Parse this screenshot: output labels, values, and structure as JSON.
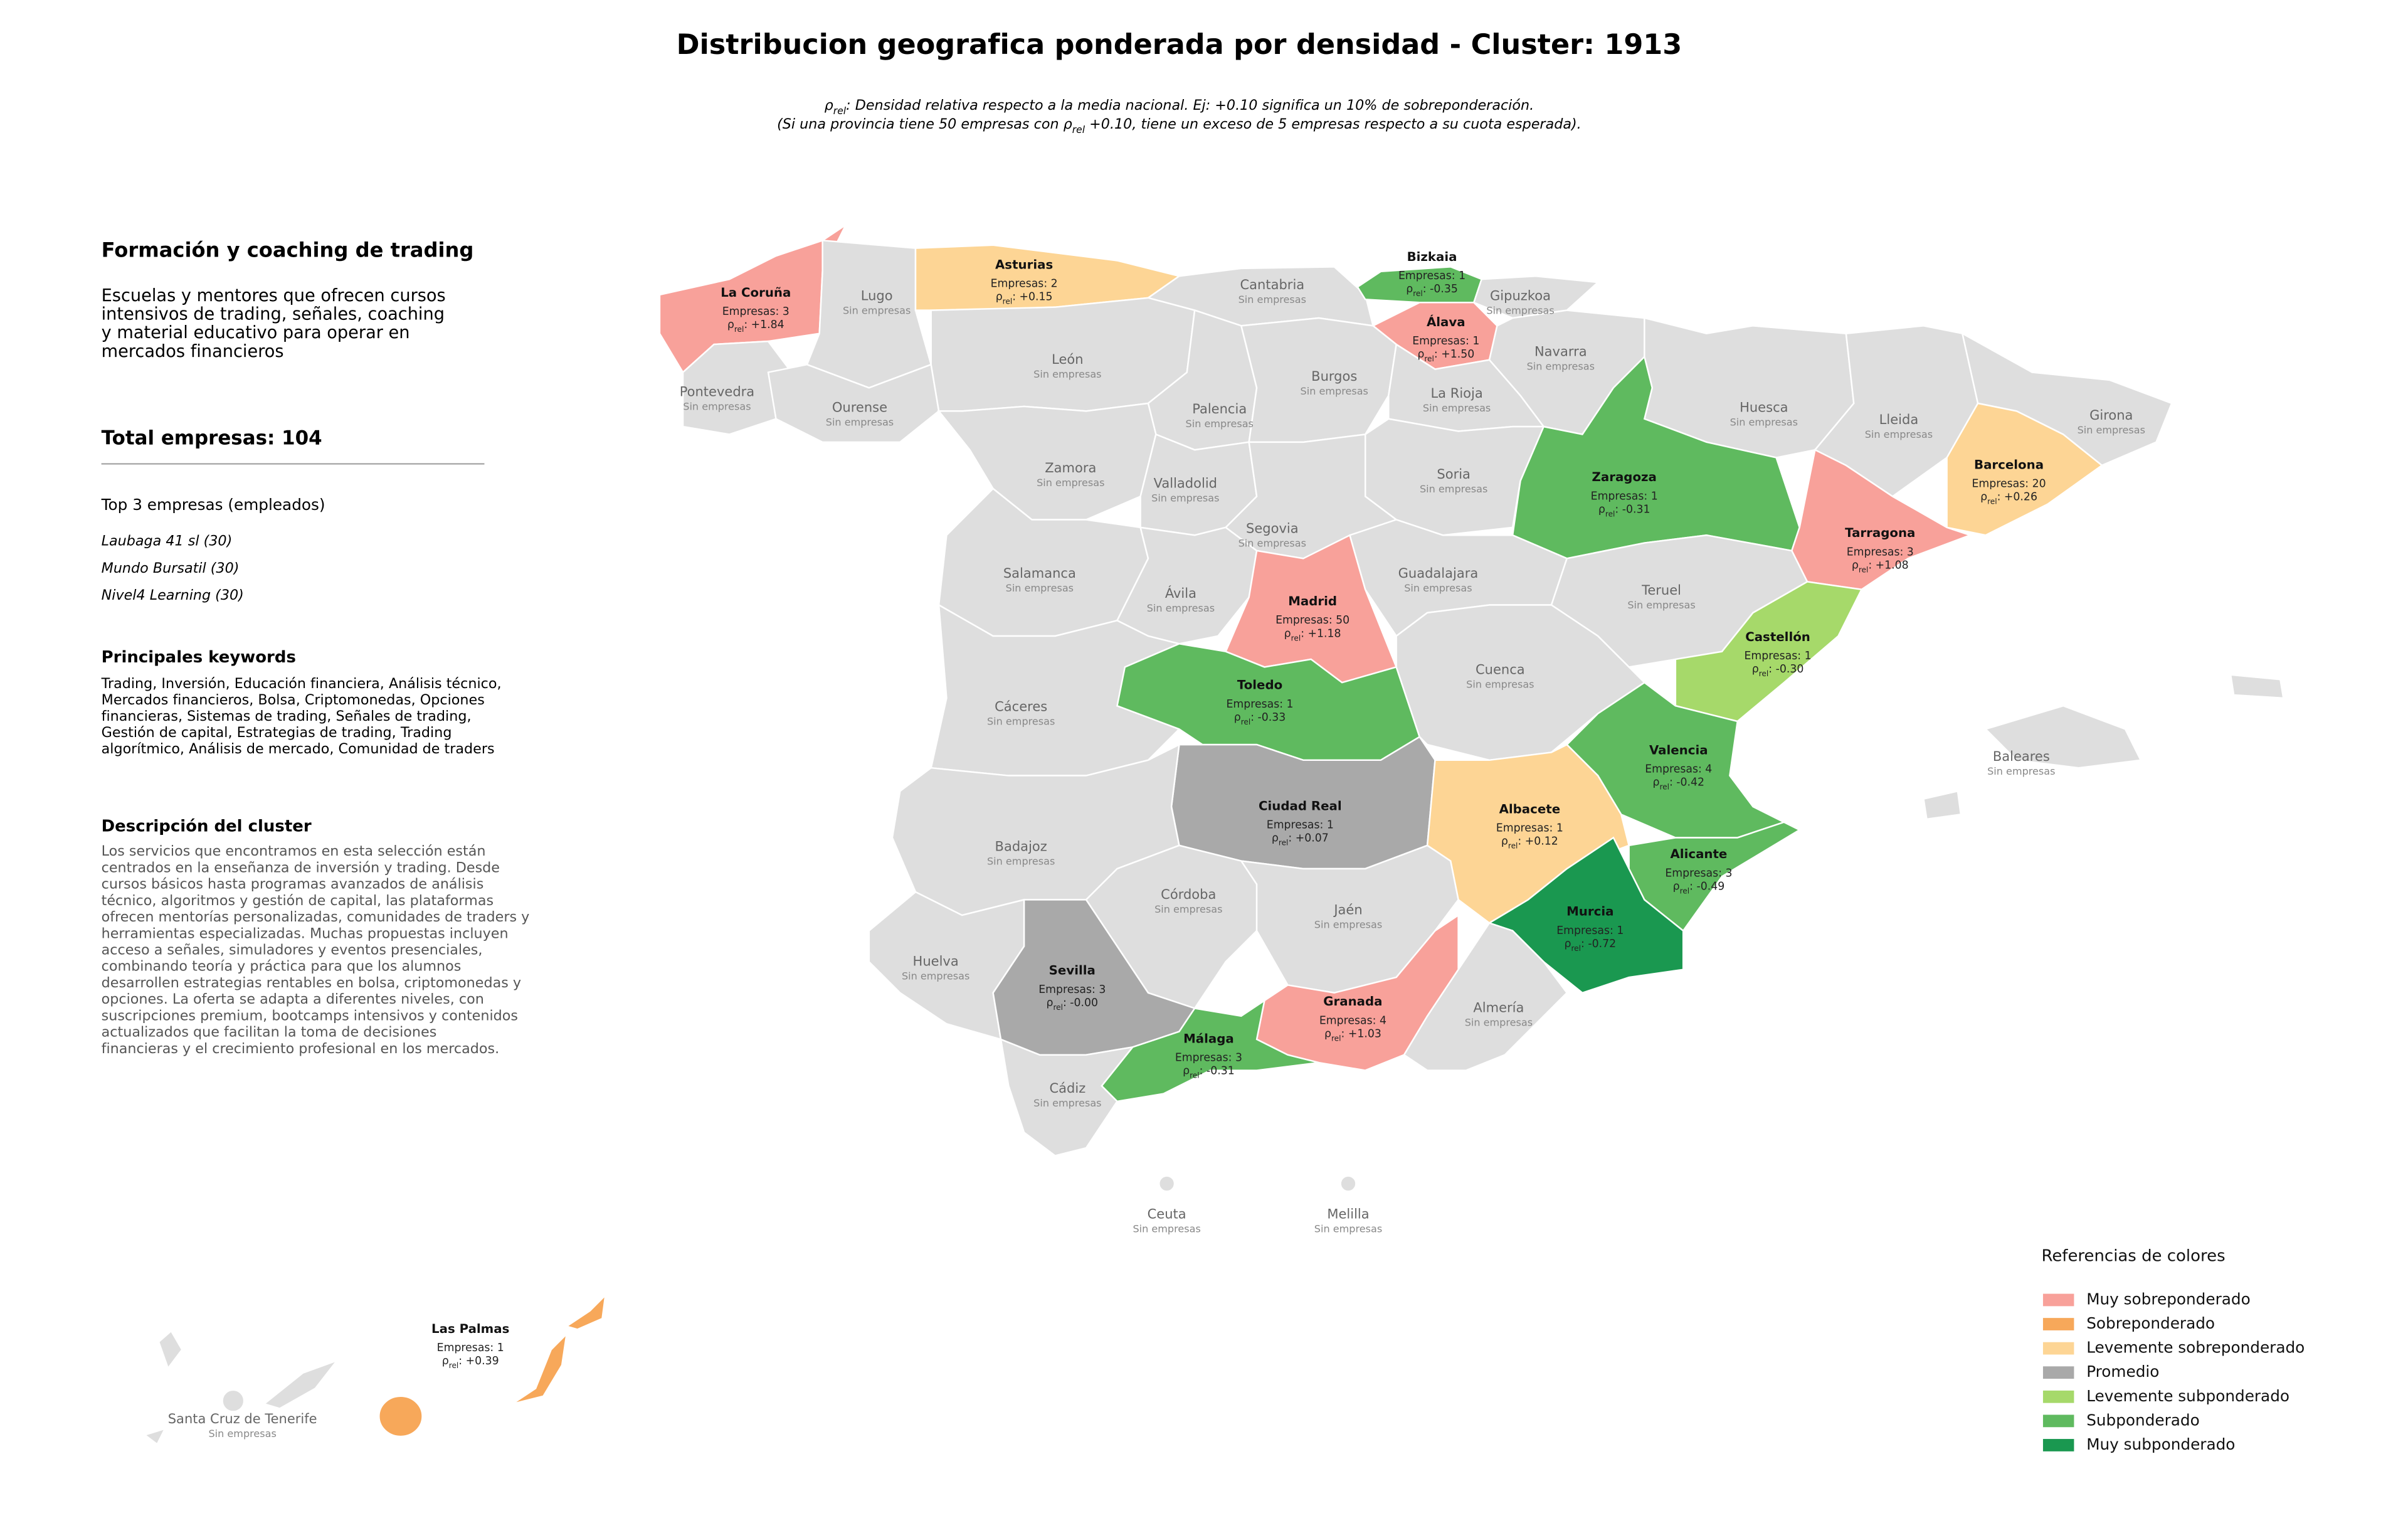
{
  "title": "Distribucion geografica ponderada por densidad - Cluster: 1913",
  "subtitle": [
    [
      "ρ",
      "rel",
      ": Densidad relativa respecto a la media nacional. Ej: +0.10 significa un 10% de sobreponderación."
    ],
    [
      "(Si una provincia tiene 50 empresas con ρ",
      "rel",
      " +0.10, tiene un exceso de 5 empresas respecto a su cuota esperada)."
    ]
  ],
  "panel": {
    "title": "Formación y coaching de trading",
    "description": [
      "Escuelas y mentores que ofrecen cursos",
      "intensivos de trading, señales, coaching",
      "y material educativo para operar en",
      "mercados financieros"
    ],
    "total": "Total empresas: 104",
    "top_heading": "Top 3 empresas (empleados)",
    "top": [
      "Laubaga 41 sl (30)",
      "Mundo Bursatil (30)",
      "Nivel4 Learning (30)"
    ],
    "keywords_heading": "Principales keywords",
    "keywords": [
      "Trading, Inversión, Educación financiera, Análisis técnico,",
      "Mercados financieros, Bolsa, Criptomonedas, Opciones",
      "financieras, Sistemas de trading, Señales de trading,",
      "Gestión de capital, Estrategias de trading, Trading",
      "algorítmico, Análisis de mercado, Comunidad de traders"
    ],
    "cluster_heading": "Descripción del cluster",
    "cluster": [
      "Los servicios que encontramos en esta selección están",
      "centrados en la enseñanza de inversión y trading. Desde",
      "cursos básicos hasta programas avanzados de análisis",
      "técnico, algoritmos y gestión de capital, las plataformas",
      "ofrecen mentorías personalizadas, comunidades de traders y",
      "herramientas especializadas. Muchas propuestas incluyen",
      "acceso a señales, simuladores y eventos presenciales,",
      "combinando teoría y práctica para que los alumnos",
      "desarrollen estrategias rentables en bolsa, criptomonedas y",
      "opciones. La oferta se adapta a diferentes niveles, con",
      "suscripciones premium, bootcamps intensivos y contenidos",
      "actualizados que facilitan la toma de decisiones",
      "financieras y el crecimiento profesional en los mercados."
    ]
  },
  "provinces": [
    {
      "name": "La Coruña",
      "color": "#f8a19a",
      "count": "Empresas: 3",
      "rho": [
        "ρ",
        "rel",
        ": +1.84"
      ]
    },
    {
      "name": "Lugo",
      "color": "#dedede",
      "note": "Sin empresas"
    },
    {
      "name": "Asturias",
      "color": "#fdd595",
      "count": "Empresas: 2",
      "rho": [
        "ρ",
        "rel",
        ": +0.15"
      ]
    },
    {
      "name": "Cantabria",
      "color": "#dedede",
      "note": "Sin empresas"
    },
    {
      "name": "Bizkaia",
      "color": "#5fba5f",
      "count": "Empresas: 1",
      "rho": [
        "ρ",
        "rel",
        ": -0.35"
      ]
    },
    {
      "name": "Gipuzkoa",
      "color": "#dedede",
      "note": "Sin empresas"
    },
    {
      "name": "Álava",
      "color": "#f8a19a",
      "count": "Empresas: 1",
      "rho": [
        "ρ",
        "rel",
        ": +1.50"
      ]
    },
    {
      "name": "Navarra",
      "color": "#dedede",
      "note": "Sin empresas"
    },
    {
      "name": "Pontevedra",
      "color": "#dedede",
      "note": "Sin empresas"
    },
    {
      "name": "Ourense",
      "color": "#dedede",
      "note": "Sin empresas"
    },
    {
      "name": "León",
      "color": "#dedede",
      "note": "Sin empresas"
    },
    {
      "name": "Palencia",
      "color": "#dedede",
      "note": "Sin empresas"
    },
    {
      "name": "Burgos",
      "color": "#dedede",
      "note": "Sin empresas"
    },
    {
      "name": "La Rioja",
      "color": "#dedede",
      "note": "Sin empresas"
    },
    {
      "name": "Huesca",
      "color": "#dedede",
      "note": "Sin empresas"
    },
    {
      "name": "Lleida",
      "color": "#dedede",
      "note": "Sin empresas"
    },
    {
      "name": "Girona",
      "color": "#dedede",
      "note": "Sin empresas"
    },
    {
      "name": "Zaragoza",
      "color": "#5fba5f",
      "count": "Empresas: 1",
      "rho": [
        "ρ",
        "rel",
        ": -0.31"
      ]
    },
    {
      "name": "Barcelona",
      "color": "#fdd595",
      "count": "Empresas: 20",
      "rho": [
        "ρ",
        "rel",
        ": +0.26"
      ]
    },
    {
      "name": "Zamora",
      "color": "#dedede",
      "note": "Sin empresas"
    },
    {
      "name": "Valladolid",
      "color": "#dedede",
      "note": "Sin empresas"
    },
    {
      "name": "Soria",
      "color": "#dedede",
      "note": "Sin empresas"
    },
    {
      "name": "Segovia",
      "color": "#dedede",
      "note": "Sin empresas"
    },
    {
      "name": "Tarragona",
      "color": "#f8a19a",
      "count": "Empresas: 3",
      "rho": [
        "ρ",
        "rel",
        ": +1.08"
      ]
    },
    {
      "name": "Salamanca",
      "color": "#dedede",
      "note": "Sin empresas"
    },
    {
      "name": "Ávila",
      "color": "#dedede",
      "note": "Sin empresas"
    },
    {
      "name": "Madrid",
      "color": "#f8a19a",
      "count": "Empresas: 50",
      "rho": [
        "ρ",
        "rel",
        ": +1.18"
      ]
    },
    {
      "name": "Guadalajara",
      "color": "#dedede",
      "note": "Sin empresas"
    },
    {
      "name": "Teruel",
      "color": "#dedede",
      "note": "Sin empresas"
    },
    {
      "name": "Castellón",
      "color": "#a6d96a",
      "count": "Empresas: 1",
      "rho": [
        "ρ",
        "rel",
        ": -0.30"
      ]
    },
    {
      "name": "Cáceres",
      "color": "#dedede",
      "note": "Sin empresas"
    },
    {
      "name": "Toledo",
      "color": "#5fba5f",
      "count": "Empresas: 1",
      "rho": [
        "ρ",
        "rel",
        ": -0.33"
      ]
    },
    {
      "name": "Cuenca",
      "color": "#dedede",
      "note": "Sin empresas"
    },
    {
      "name": "Valencia",
      "color": "#5fba5f",
      "count": "Empresas: 4",
      "rho": [
        "ρ",
        "rel",
        ": -0.42"
      ]
    },
    {
      "name": "Baleares",
      "color": "#dedede",
      "note": "Sin empresas"
    },
    {
      "name": "Ciudad Real",
      "color": "#a9a9a9",
      "count": "Empresas: 1",
      "rho": [
        "ρ",
        "rel",
        ": +0.07"
      ]
    },
    {
      "name": "Albacete",
      "color": "#fdd595",
      "count": "Empresas: 1",
      "rho": [
        "ρ",
        "rel",
        ": +0.12"
      ]
    },
    {
      "name": "Badajoz",
      "color": "#dedede",
      "note": "Sin empresas"
    },
    {
      "name": "Alicante",
      "color": "#5fba5f",
      "count": "Empresas: 3",
      "rho": [
        "ρ",
        "rel",
        ": -0.49"
      ]
    },
    {
      "name": "Córdoba",
      "color": "#dedede",
      "note": "Sin empresas"
    },
    {
      "name": "Jaén",
      "color": "#dedede",
      "note": "Sin empresas"
    },
    {
      "name": "Murcia",
      "color": "#1a9850",
      "count": "Empresas: 1",
      "rho": [
        "ρ",
        "rel",
        ": -0.72"
      ]
    },
    {
      "name": "Huelva",
      "color": "#dedede",
      "note": "Sin empresas"
    },
    {
      "name": "Sevilla",
      "color": "#a9a9a9",
      "count": "Empresas: 3",
      "rho": [
        "ρ",
        "rel",
        ": -0.00"
      ]
    },
    {
      "name": "Granada",
      "color": "#f8a19a",
      "count": "Empresas: 4",
      "rho": [
        "ρ",
        "rel",
        ": +1.03"
      ]
    },
    {
      "name": "Almería",
      "color": "#dedede",
      "note": "Sin empresas"
    },
    {
      "name": "Málaga",
      "color": "#5fba5f",
      "count": "Empresas: 3",
      "rho": [
        "ρ",
        "rel",
        ": -0.31"
      ]
    },
    {
      "name": "Cádiz",
      "color": "#dedede",
      "note": "Sin empresas"
    },
    {
      "name": "Ceuta",
      "color": "#dedede",
      "note": "Sin empresas"
    },
    {
      "name": "Melilla",
      "color": "#dedede",
      "note": "Sin empresas"
    },
    {
      "name": "Las Palmas",
      "color": "#f7a85a",
      "count": "Empresas: 1",
      "rho": [
        "ρ",
        "rel",
        ": +0.39"
      ]
    },
    {
      "name": "Santa Cruz de Tenerife",
      "color": "#dedede",
      "note": "Sin empresas"
    }
  ],
  "legend": {
    "title": "Referencias de colores",
    "items": [
      {
        "name": "Muy sobreponderado",
        "color": "#f8a19a"
      },
      {
        "name": "Sobreponderado",
        "color": "#f7a85a"
      },
      {
        "name": "Levemente sobreponderado",
        "color": "#fdd595"
      },
      {
        "name": "Promedio",
        "color": "#a9a9a9"
      },
      {
        "name": "Levemente subponderado",
        "color": "#a6d96a"
      },
      {
        "name": "Subponderado",
        "color": "#5fba5f"
      },
      {
        "name": "Muy subponderado",
        "color": "#1a9850"
      }
    ]
  }
}
